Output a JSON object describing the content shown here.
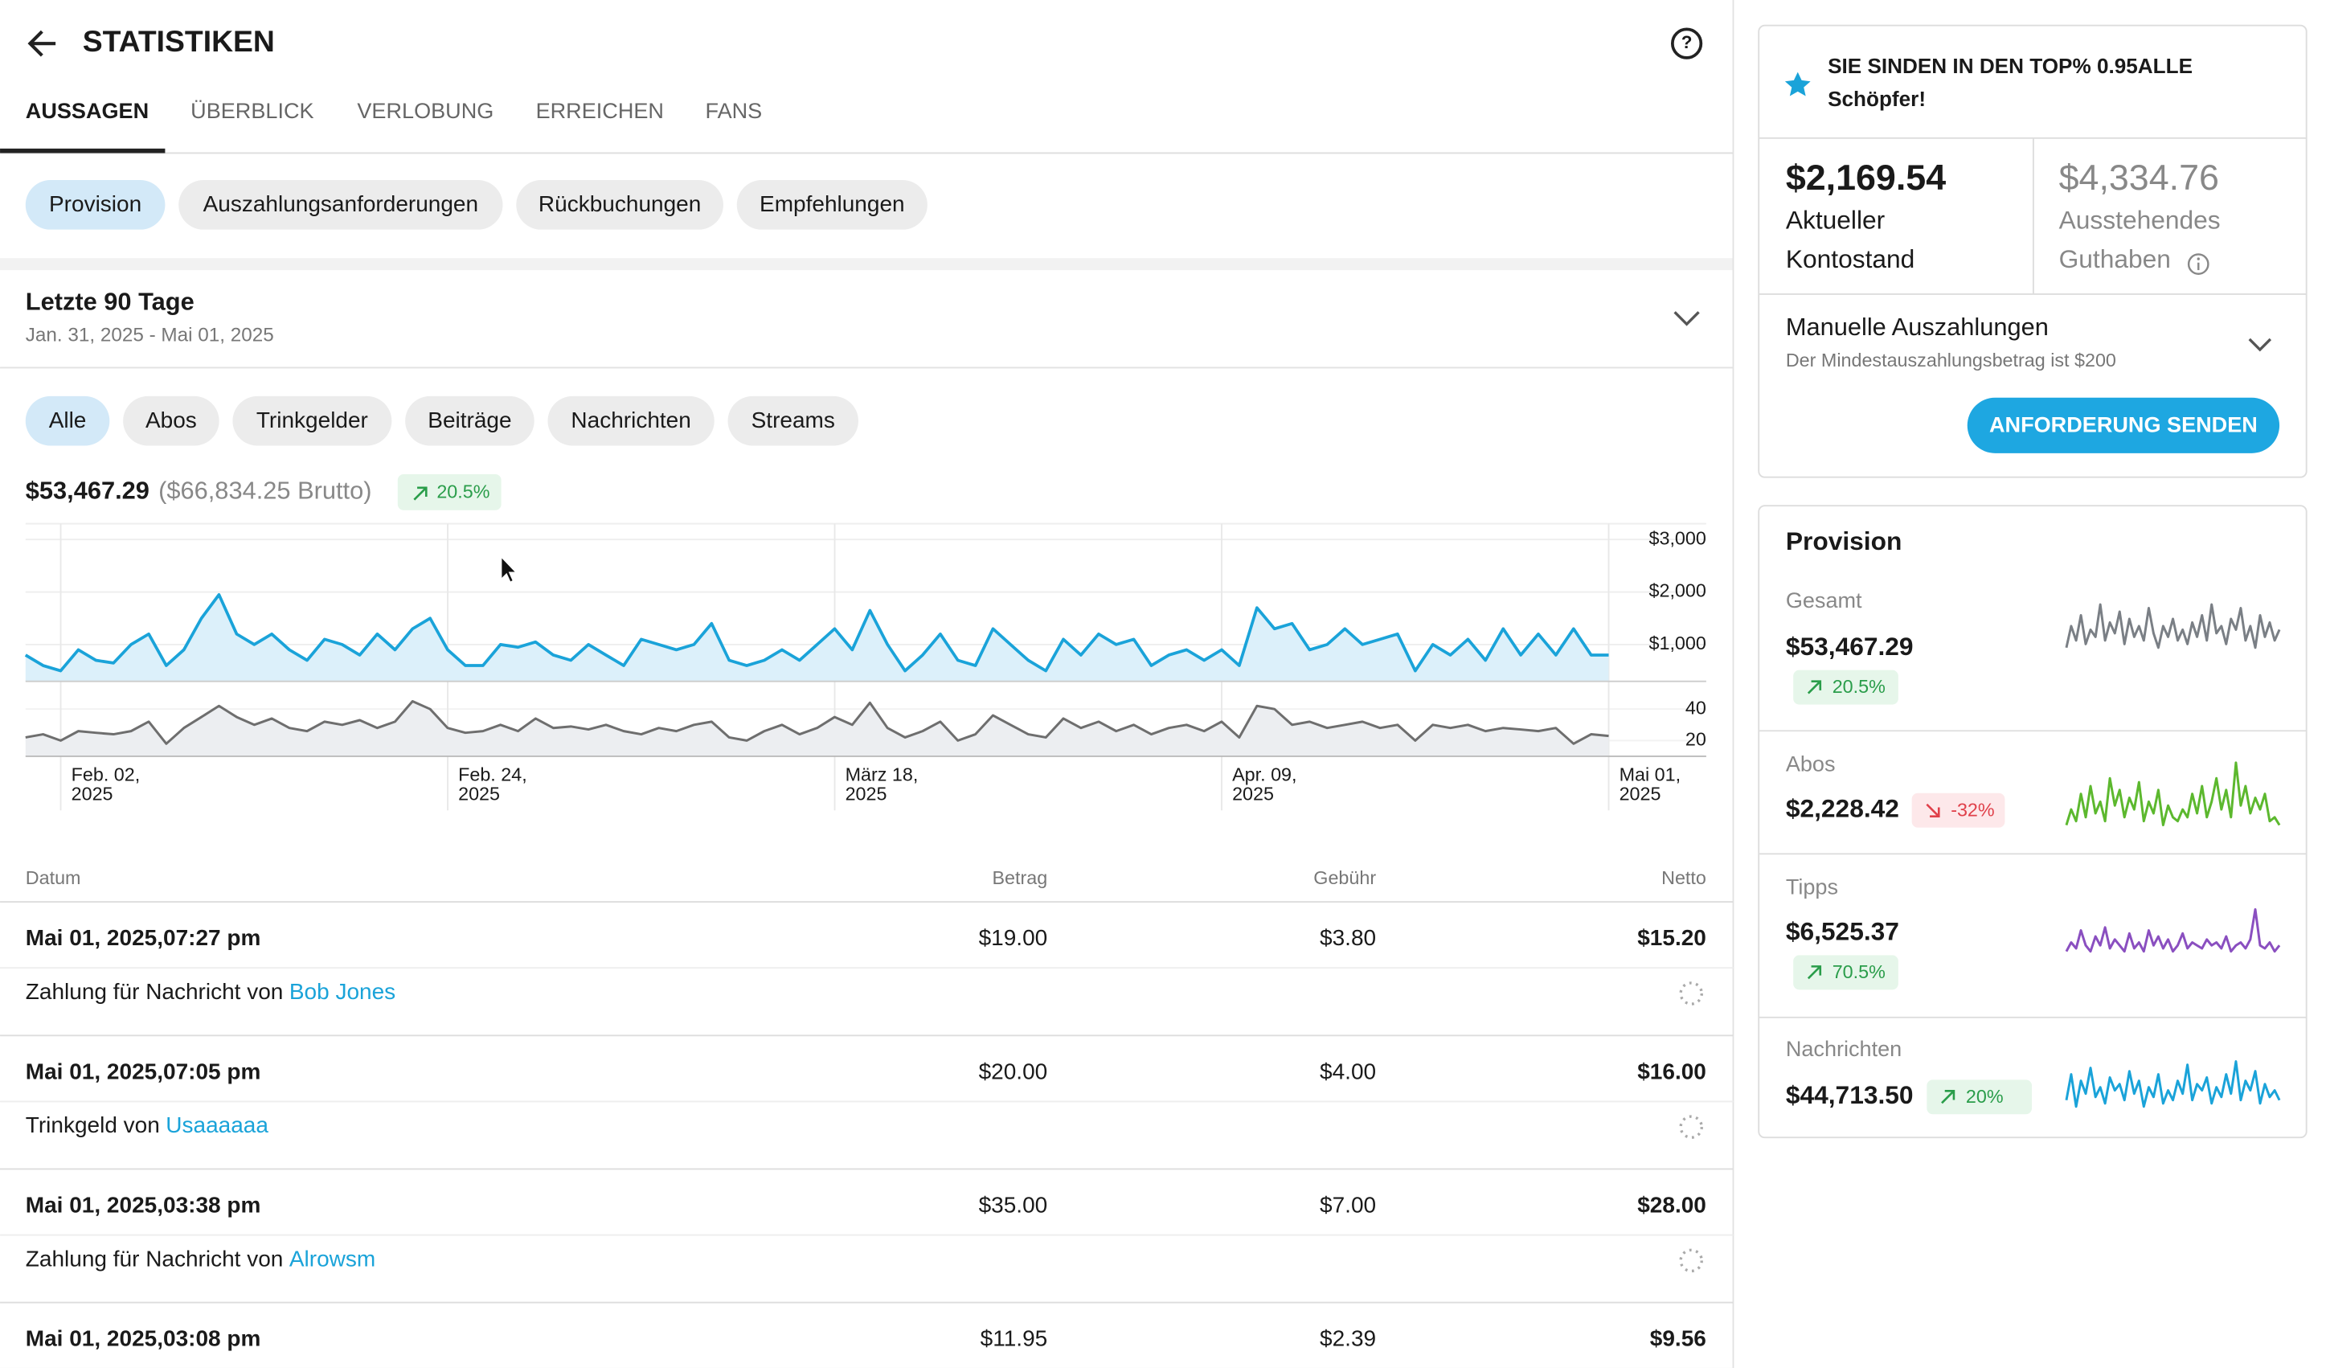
{
  "header": {
    "title": "STATISTIKEN"
  },
  "tabs": [
    "AUSSAGEN",
    "ÜBERBLICK",
    "VERLOBUNG",
    "ERREICHEN",
    "FANS"
  ],
  "chips": [
    "Provision",
    "Auszahlungsanforderungen",
    "Rückbuchungen",
    "Empfehlungen"
  ],
  "period": {
    "title": "Letzte 90 Tage",
    "range": "Jan. 31, 2025 - Mai 01, 2025"
  },
  "filters": [
    "Alle",
    "Abos",
    "Trinkgelder",
    "Beiträge",
    "Nachrichten",
    "Streams"
  ],
  "summary": {
    "net": "$53,467.29",
    "gross": "($66,834.25 Brutto)",
    "change": "20.5%"
  },
  "chart_data": [
    {
      "type": "line",
      "area": true,
      "color": "#1aa3d9",
      "fill": "#dcf0fa",
      "xlim": [
        0,
        90
      ],
      "ylim": [
        300,
        3300
      ],
      "yticks": [
        {
          "value": 1000,
          "label": "$1,000"
        },
        {
          "value": 2000,
          "label": "$2,000"
        },
        {
          "value": 3000,
          "label": "$3,000"
        }
      ],
      "xticks": [
        {
          "value": 2,
          "label": "Feb. 02, 2025"
        },
        {
          "value": 24,
          "label": "Feb. 24, 2025"
        },
        {
          "value": 46,
          "label": "März 18, 2025"
        },
        {
          "value": 68,
          "label": "Apr. 09, 2025"
        },
        {
          "value": 90,
          "label": "Mai 01, 2025"
        }
      ],
      "values": [
        800,
        600,
        500,
        900,
        700,
        650,
        1000,
        1200,
        600,
        900,
        1500,
        1950,
        1200,
        1000,
        1200,
        900,
        700,
        1100,
        1000,
        800,
        1200,
        900,
        1300,
        1500,
        900,
        600,
        600,
        1000,
        950,
        1050,
        800,
        700,
        1000,
        800,
        600,
        1100,
        1000,
        900,
        1000,
        1400,
        700,
        600,
        700,
        900,
        700,
        1000,
        1300,
        900,
        1650,
        1000,
        500,
        800,
        1200,
        700,
        600,
        1300,
        1000,
        700,
        500,
        1100,
        800,
        1200,
        1000,
        1100,
        600,
        800,
        900,
        700,
        900,
        600,
        1700,
        1300,
        1400,
        900,
        1000,
        1300,
        1000,
        1100,
        1200,
        500,
        1000,
        800,
        1100,
        700,
        1300,
        800,
        1200,
        800,
        1300,
        800,
        800
      ]
    },
    {
      "type": "line",
      "area": true,
      "color": "#6e6e6e",
      "fill": "#eceef1",
      "xlim": [
        0,
        90
      ],
      "ylim": [
        10,
        50
      ],
      "yticks": [
        20,
        40
      ],
      "values": [
        22,
        24,
        20,
        26,
        25,
        24,
        26,
        32,
        18,
        28,
        35,
        42,
        35,
        30,
        34,
        28,
        26,
        32,
        30,
        33,
        28,
        32,
        45,
        40,
        28,
        25,
        26,
        30,
        26,
        34,
        28,
        29,
        27,
        30,
        26,
        24,
        28,
        26,
        30,
        32,
        22,
        20,
        26,
        30,
        24,
        28,
        35,
        30,
        44,
        28,
        22,
        26,
        32,
        20,
        24,
        36,
        30,
        24,
        22,
        34,
        28,
        32,
        26,
        30,
        24,
        28,
        30,
        26,
        32,
        22,
        42,
        40,
        30,
        32,
        28,
        30,
        32,
        28,
        30,
        20,
        30,
        28,
        30,
        26,
        28,
        27,
        26,
        28,
        18,
        24,
        23
      ]
    },
    {
      "type": "line",
      "color": "#7a7f85",
      "ylim": [
        0,
        100
      ],
      "values": [
        30,
        60,
        40,
        75,
        35,
        55,
        45,
        90,
        40,
        65,
        50,
        80,
        35,
        70,
        45,
        60,
        40,
        85,
        50,
        30,
        60,
        45,
        70,
        40,
        55,
        35,
        65,
        45,
        75,
        40,
        90,
        50,
        60,
        35,
        70,
        55,
        85,
        40,
        60,
        30,
        75,
        45,
        65,
        40,
        55
      ]
    },
    {
      "type": "line",
      "color": "#5cb82e",
      "ylim": [
        0,
        100
      ],
      "values": [
        10,
        30,
        15,
        50,
        20,
        60,
        25,
        40,
        15,
        70,
        35,
        55,
        20,
        45,
        30,
        65,
        15,
        40,
        25,
        55,
        10,
        35,
        20,
        15,
        30,
        20,
        50,
        25,
        60,
        20,
        40,
        70,
        30,
        55,
        20,
        90,
        35,
        60,
        25,
        45,
        30,
        50,
        15,
        20,
        10
      ]
    },
    {
      "type": "line",
      "color": "#8a4fc0",
      "ylim": [
        0,
        100
      ],
      "values": [
        10,
        25,
        15,
        45,
        20,
        10,
        35,
        20,
        50,
        15,
        30,
        20,
        10,
        40,
        15,
        25,
        10,
        45,
        20,
        35,
        15,
        30,
        10,
        20,
        40,
        15,
        25,
        20,
        15,
        30,
        20,
        25,
        15,
        35,
        10,
        20,
        25,
        15,
        30,
        80,
        20,
        15,
        25,
        10,
        20
      ]
    },
    {
      "type": "line",
      "color": "#1aa3d9",
      "ylim": [
        0,
        100
      ],
      "values": [
        30,
        70,
        20,
        60,
        40,
        80,
        35,
        50,
        25,
        65,
        45,
        55,
        30,
        75,
        40,
        60,
        20,
        50,
        35,
        70,
        25,
        45,
        30,
        60,
        40,
        85,
        30,
        55,
        45,
        65,
        25,
        50,
        35,
        70,
        40,
        90,
        30,
        60,
        45,
        75,
        25,
        55,
        35,
        45,
        30
      ]
    }
  ],
  "table": {
    "columns": [
      "Datum",
      "Betrag",
      "Gebühr",
      "Netto"
    ],
    "rows": [
      {
        "date": "Mai 01, 2025,07:27 pm",
        "amount": "$19.00",
        "fee": "$3.80",
        "net": "$15.20",
        "desc": "Zahlung für Nachricht von",
        "name": "Bob Jones"
      },
      {
        "date": "Mai 01, 2025,07:05 pm",
        "amount": "$20.00",
        "fee": "$4.00",
        "net": "$16.00",
        "desc": "Trinkgeld von",
        "name": "Usaaaaaa"
      },
      {
        "date": "Mai 01, 2025,03:38 pm",
        "amount": "$35.00",
        "fee": "$7.00",
        "net": "$28.00",
        "desc": "Zahlung für Nachricht von",
        "name": "Alrowsm"
      },
      {
        "date": "Mai 01, 2025,03:08 pm",
        "amount": "$11.95",
        "fee": "$2.39",
        "net": "$9.56"
      }
    ]
  },
  "sidebar": {
    "banner": [
      "SIE SINDEN IN DEN TOP% 0.95ALLE",
      "Schöpfer!"
    ],
    "balance": {
      "value": "$2,169.54",
      "label": [
        "Aktueller",
        "Kontostand"
      ]
    },
    "pending": {
      "value": "$4,334.76",
      "label": [
        "Ausstehendes",
        "Guthaben"
      ]
    },
    "payout": {
      "title": "Manuelle Auszahlungen",
      "note": "Der Mindestauszahlungsbetrag ist $200",
      "button": "ANFORDERUNG SENDEN"
    },
    "provision": {
      "title": "Provision",
      "items": [
        {
          "label": "Gesamt",
          "value": "$53,467.29",
          "change": "20.5%",
          "trend": "up"
        },
        {
          "label": "Abos",
          "value": "$2,228.42",
          "change": "-32%",
          "trend": "down"
        },
        {
          "label": "Tipps",
          "value": "$6,525.37",
          "change": "70.5%",
          "trend": "up"
        },
        {
          "label": "Nachrichten",
          "value": "$44,713.50",
          "change": "20%",
          "trend": "up"
        }
      ]
    }
  }
}
